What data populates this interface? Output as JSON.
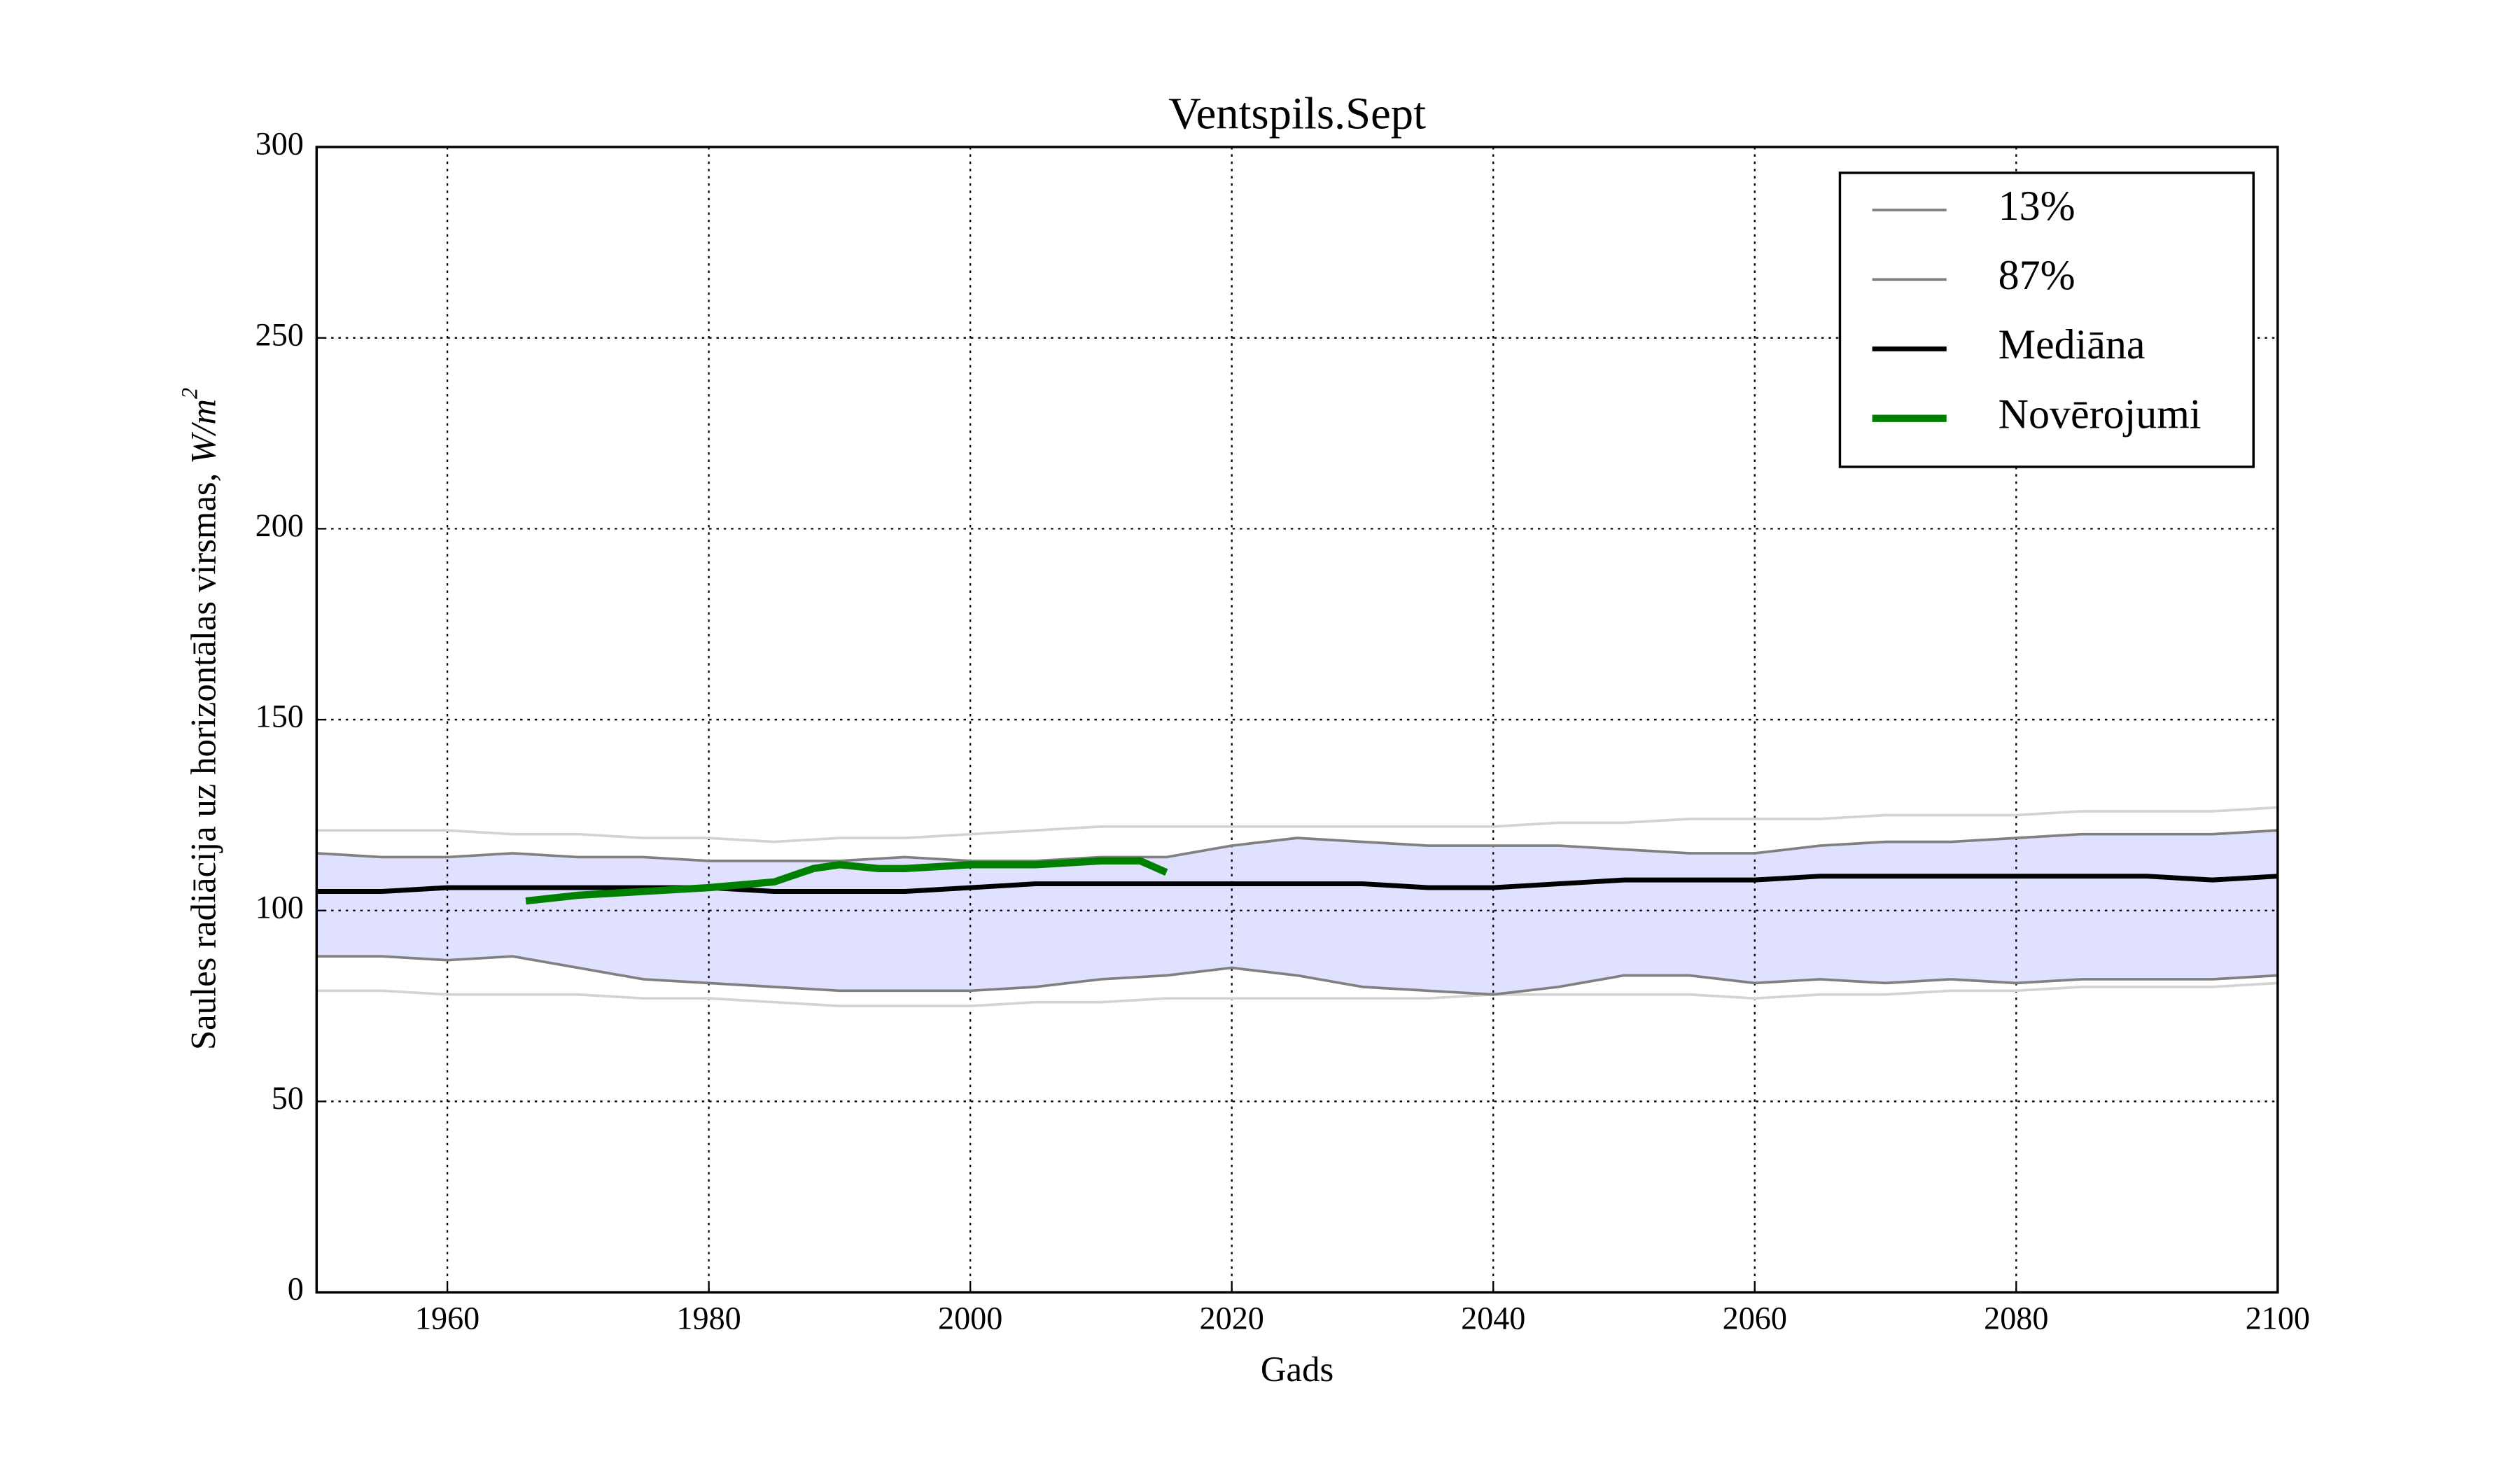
{
  "chart_data": {
    "type": "line",
    "title": "Ventspils.Sept",
    "xlabel": "Gads",
    "ylabel": "Saules radiācija uz horizontālas virsmas, ",
    "ylabel_unit": "W/m",
    "ylabel_unit_exp": "2",
    "x": [
      1950,
      1955,
      1960,
      1965,
      1970,
      1975,
      1980,
      1985,
      1990,
      1995,
      2000,
      2005,
      2010,
      2015,
      2020,
      2025,
      2030,
      2035,
      2040,
      2045,
      2050,
      2055,
      2060,
      2065,
      2070,
      2075,
      2080,
      2085,
      2090,
      2095,
      2100
    ],
    "series": [
      {
        "name": "13%",
        "color": "#808080",
        "values": [
          88,
          88,
          87,
          88,
          85,
          82,
          81,
          80,
          79,
          79,
          79,
          80,
          82,
          83,
          85,
          83,
          80,
          79,
          78,
          80,
          83,
          83,
          81,
          82,
          81,
          82,
          81,
          82,
          82,
          82,
          83
        ]
      },
      {
        "name": "87%",
        "color": "#808080",
        "values": [
          115,
          114,
          114,
          115,
          114,
          114,
          113,
          113,
          113,
          114,
          113,
          113,
          114,
          114,
          117,
          119,
          118,
          117,
          117,
          117,
          116,
          115,
          115,
          117,
          118,
          118,
          119,
          120,
          120,
          120,
          121
        ]
      },
      {
        "name": "Mediāna",
        "color": "#000000",
        "values": [
          105,
          105,
          106,
          106,
          106,
          106,
          106,
          105,
          105,
          105,
          106,
          107,
          107,
          107,
          107,
          107,
          107,
          106,
          106,
          107,
          108,
          108,
          108,
          109,
          109,
          109,
          109,
          109,
          109,
          108,
          109
        ]
      },
      {
        "name": "Novērojumi",
        "color": "#008000",
        "x": [
          1966,
          1970,
          1975,
          1980,
          1985,
          1988,
          1990,
          1993,
          1995,
          2000,
          2005,
          2010,
          2013,
          2015
        ],
        "values": [
          102.5,
          104,
          105,
          106,
          107.5,
          111,
          112,
          111,
          111,
          112,
          112,
          113,
          113,
          110
        ]
      },
      {
        "color": "#d3d3d3",
        "values": [
          121,
          121,
          121,
          120,
          120,
          119,
          119,
          118,
          119,
          119,
          120,
          121,
          122,
          122,
          122,
          122,
          122,
          122,
          122,
          123,
          123,
          124,
          124,
          124,
          125,
          125,
          125,
          126,
          126,
          126,
          127
        ]
      },
      {
        "color": "#d3d3d3",
        "values": [
          79,
          79,
          78,
          78,
          78,
          77,
          77,
          76,
          75,
          75,
          75,
          76,
          76,
          77,
          77,
          77,
          77,
          77,
          78,
          78,
          78,
          78,
          77,
          78,
          78,
          79,
          79,
          80,
          80,
          80,
          81
        ]
      }
    ],
    "band_color": "#e0e0ff",
    "xlim": [
      1950,
      2100
    ],
    "xticks": [
      1960,
      1980,
      2000,
      2020,
      2040,
      2060,
      2080,
      2100
    ],
    "ylim": [
      0,
      300
    ],
    "yticks": [
      0,
      50,
      100,
      150,
      200,
      250,
      300
    ],
    "grid": true,
    "legend": "upper right"
  }
}
